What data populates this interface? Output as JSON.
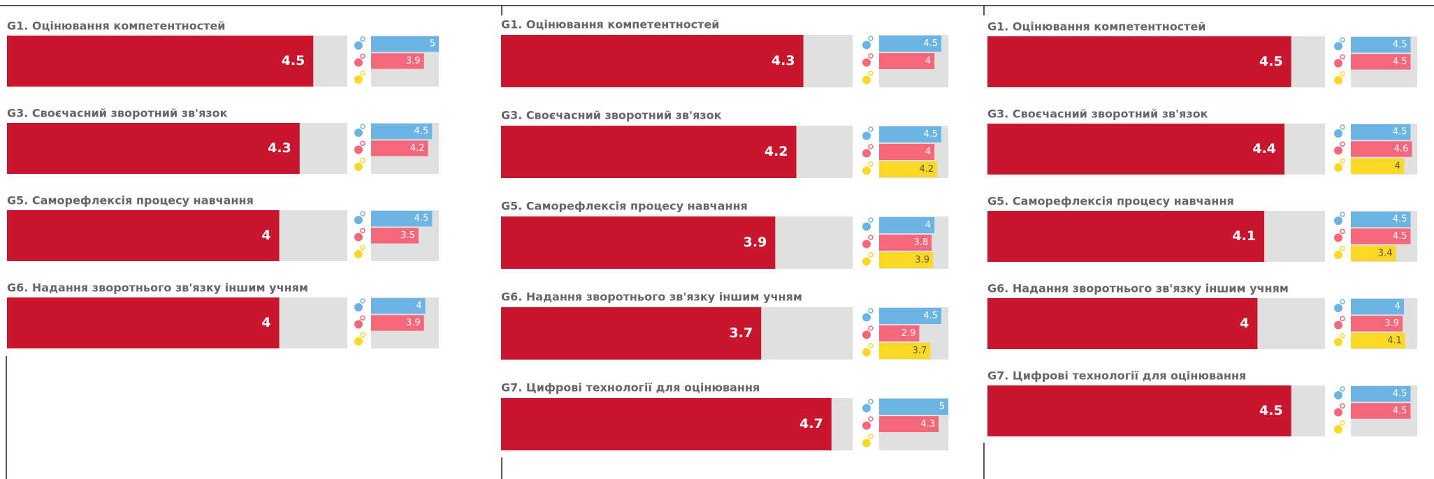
{
  "chart_data": [
    {
      "type": "bar",
      "color": "#c8162f",
      "xlim": [
        0,
        5
      ],
      "categories": [
        "G1. Оцінювання компетентностей",
        "G3. Своєчасний зворотний зв'язок",
        "G5. Саморефлексія процесу навчання",
        "G6. Надання зворотнього зв'язку іншим учням"
      ],
      "values": [
        4.5,
        4.3,
        4,
        4
      ],
      "series": [
        {
          "color": "#6cb4e4",
          "values": [
            5,
            4.5,
            4.5,
            4
          ]
        },
        {
          "color": "#f5677a",
          "values": [
            3.9,
            4.2,
            3.5,
            3.9
          ]
        },
        {
          "color": "#fcd826",
          "values": [
            null,
            null,
            null,
            null
          ]
        }
      ]
    },
    {
      "type": "bar",
      "color": "#c8162f",
      "xlim": [
        0,
        5
      ],
      "categories": [
        "G1. Оцінювання компетентностей",
        "G3. Своєчасний зворотний зв'язок",
        "G5. Саморефлексія процесу навчання",
        "G6. Надання зворотнього зв'язку іншим учням",
        "G7. Цифрові технології для оцінювання"
      ],
      "values": [
        4.3,
        4.2,
        3.9,
        3.7,
        4.7
      ],
      "series": [
        {
          "color": "#6cb4e4",
          "values": [
            4.5,
            4.5,
            4,
            4.5,
            5
          ]
        },
        {
          "color": "#f5677a",
          "values": [
            4,
            4,
            3.8,
            2.9,
            4.3
          ]
        },
        {
          "color": "#fcd826",
          "values": [
            null,
            4.2,
            3.9,
            3.7,
            null
          ]
        }
      ]
    },
    {
      "type": "bar",
      "color": "#c8162f",
      "xlim": [
        0,
        5
      ],
      "categories": [
        "G1. Оцінювання компетентностей",
        "G3. Своєчасний зворотний зв'язок",
        "G5. Саморефлексія процесу навчання",
        "G6. Надання зворотнього зв'язку іншим учням",
        "G7. Цифрові технології для оцінювання"
      ],
      "values": [
        4.5,
        4.4,
        4.1,
        4,
        4.5
      ],
      "series": [
        {
          "color": "#6cb4e4",
          "values": [
            4.5,
            4.5,
            4.5,
            4,
            4.5
          ]
        },
        {
          "color": "#f5677a",
          "values": [
            4.5,
            4.6,
            4.5,
            3.9,
            4.5
          ]
        },
        {
          "color": "#fcd826",
          "values": [
            null,
            4,
            3.4,
            4.1,
            null
          ]
        }
      ]
    }
  ]
}
